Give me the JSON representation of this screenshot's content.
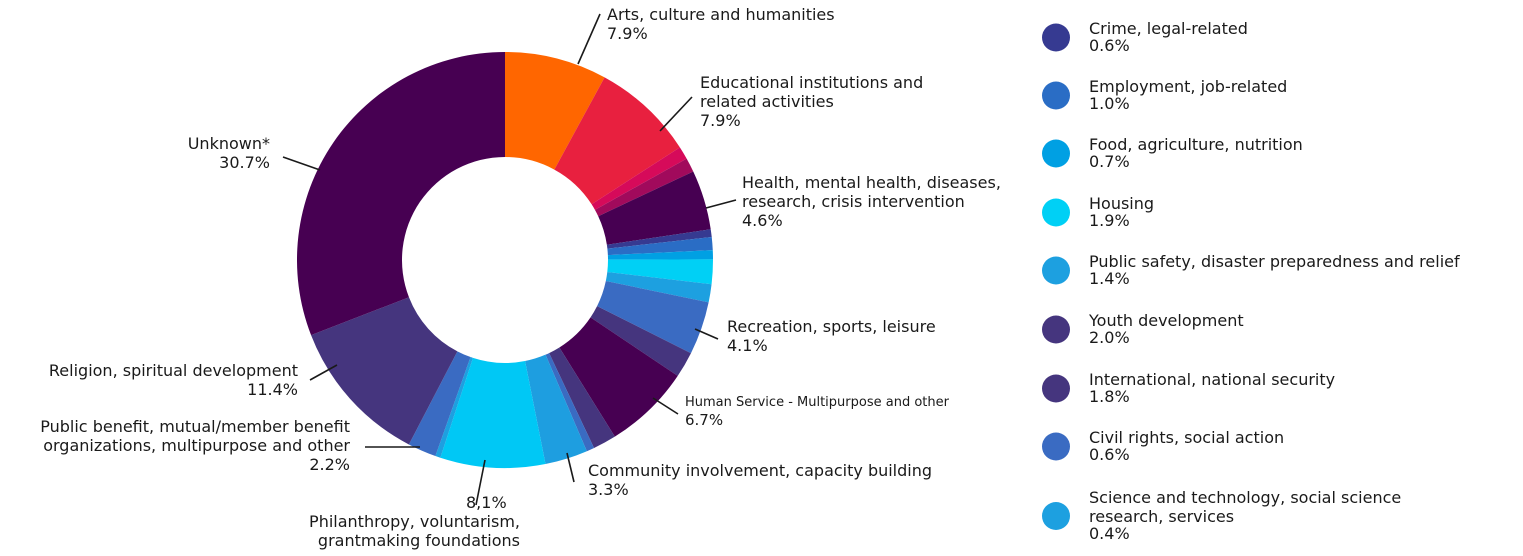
{
  "chart_data": {
    "type": "pie",
    "style": "donut",
    "slices": [
      {
        "label": [
          "Arts, culture and humanities"
        ],
        "value_text": "7.9%",
        "value": 7.9,
        "color": "#ff6600"
      },
      {
        "label": [
          "Educational institutions and",
          "related activities"
        ],
        "value_text": "7.9%",
        "value": 7.9,
        "color": "#e8203f"
      },
      {
        "label": [],
        "value_text": "",
        "value": 1.0,
        "color": "#d60a5a"
      },
      {
        "label": [],
        "value_text": "",
        "value": 1.1,
        "color": "#a10a5c"
      },
      {
        "label": [
          "Health, mental health, diseases,",
          "research, crisis intervention"
        ],
        "value_text": "4.6%",
        "value": 4.6,
        "color": "#470052"
      },
      {
        "label": [],
        "value_text": "",
        "value": 0.6,
        "color": "#363a91"
      },
      {
        "label": [],
        "value_text": "",
        "value": 1.0,
        "color": "#2a6dc5"
      },
      {
        "label": [],
        "value_text": "",
        "value": 0.7,
        "color": "#00a0e3"
      },
      {
        "label": [],
        "value_text": "",
        "value": 1.9,
        "color": "#00d0f5"
      },
      {
        "label": [],
        "value_text": "",
        "value": 1.4,
        "color": "#1da0e0"
      },
      {
        "label": [
          "Recreation, sports, leisure"
        ],
        "value_text": "4.1%",
        "value": 4.1,
        "color": "#3a6bc2"
      },
      {
        "label": [],
        "value_text": "",
        "value": 2.0,
        "color": "#45357e"
      },
      {
        "label": [
          "Human Service - Multipurpose and other"
        ],
        "value_text": "6.7%",
        "value": 6.7,
        "color": "#470052"
      },
      {
        "label": [],
        "value_text": "",
        "value": 1.8,
        "color": "#45357e"
      },
      {
        "label": [],
        "value_text": "",
        "value": 0.6,
        "color": "#3a6bc2"
      },
      {
        "label": [
          "Community involvement, capacity building"
        ],
        "value_text": "3.3%",
        "value": 3.3,
        "color": "#1e9ee0"
      },
      {
        "label": [
          "Philanthropy, voluntarism,",
          "grantmaking foundations"
        ],
        "value_text": "8,1%",
        "value": 8.1,
        "color": "#00c8f5"
      },
      {
        "label": [],
        "value_text": "",
        "value": 0.4,
        "color": "#1da0e0"
      },
      {
        "label": [
          "Public benefit, mutual/member benefit",
          "organizations, multipurpose and other"
        ],
        "value_text": "2.2%",
        "value": 2.2,
        "color": "#3a6bc2"
      },
      {
        "label": [
          "Religion, spiritual development"
        ],
        "value_text": "11.4%",
        "value": 11.4,
        "color": "#45357e"
      },
      {
        "label": [
          "Unknown*"
        ],
        "value_text": "30.7%",
        "value": 30.7,
        "color": "#470052"
      }
    ],
    "legend": [
      {
        "label": [
          "Crime, legal-related"
        ],
        "value_text": "0.6%",
        "color": "#363a91"
      },
      {
        "label": [
          "Employment, job-related"
        ],
        "value_text": "1.0%",
        "color": "#2a6dc5"
      },
      {
        "label": [
          "Food, agriculture, nutrition"
        ],
        "value_text": "0.7%",
        "color": "#00a0e3"
      },
      {
        "label": [
          "Housing"
        ],
        "value_text": "1.9%",
        "color": "#00d0f5"
      },
      {
        "label": [
          "Public safety, disaster preparedness and relief"
        ],
        "value_text": "1.4%",
        "color": "#1da0e0"
      },
      {
        "label": [
          "Youth development"
        ],
        "value_text": "2.0%",
        "color": "#45357e"
      },
      {
        "label": [
          "International, national security"
        ],
        "value_text": "1.8%",
        "color": "#45357e"
      },
      {
        "label": [
          "Civil rights, social action"
        ],
        "value_text": "0.6%",
        "color": "#3a6bc2"
      },
      {
        "label": [
          "Science and technology, social science",
          "research, services"
        ],
        "value_text": "0.4%",
        "color": "#1da0e0"
      }
    ],
    "legend_position": "right"
  }
}
